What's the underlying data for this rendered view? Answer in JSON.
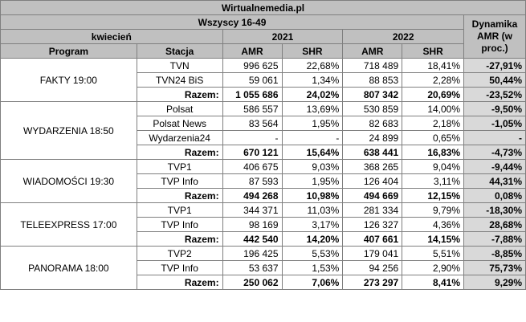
{
  "title": "Wirtualnemedia.pl",
  "group": "Wszyscy 16-49",
  "month": "kwiecień",
  "year_a": "2021",
  "year_b": "2022",
  "dynamics": "Dynamika AMR (w proc.)",
  "col_program": "Program",
  "col_station": "Stacja",
  "col_amr": "AMR",
  "col_shr": "SHR",
  "programs": [
    {
      "name": "FAKTY 19:00",
      "rows": [
        {
          "station": "TVN",
          "amr21": "996 625",
          "shr21": "22,68%",
          "amr22": "718 489",
          "shr22": "18,41%",
          "dyn": "-27,91%"
        },
        {
          "station": "TVN24 BiS",
          "amr21": "59 061",
          "shr21": "1,34%",
          "amr22": "88 853",
          "shr22": "2,28%",
          "dyn": "50,44%"
        },
        {
          "station": "Razem:",
          "amr21": "1 055 686",
          "shr21": "24,02%",
          "amr22": "807 342",
          "shr22": "20,69%",
          "dyn": "-23,52%"
        }
      ]
    },
    {
      "name": "WYDARZENIA 18:50",
      "rows": [
        {
          "station": "Polsat",
          "amr21": "586 557",
          "shr21": "13,69%",
          "amr22": "530 859",
          "shr22": "14,00%",
          "dyn": "-9,50%"
        },
        {
          "station": "Polsat News",
          "amr21": "83 564",
          "shr21": "1,95%",
          "amr22": "82 683",
          "shr22": "2,18%",
          "dyn": "-1,05%"
        },
        {
          "station": "Wydarzenia24",
          "amr21": "-",
          "shr21": "-",
          "amr22": "24 899",
          "shr22": "0,65%",
          "dyn": "-"
        },
        {
          "station": "Razem:",
          "amr21": "670 121",
          "shr21": "15,64%",
          "amr22": "638 441",
          "shr22": "16,83%",
          "dyn": "-4,73%"
        }
      ]
    },
    {
      "name": "WIADOMOŚCI 19:30",
      "rows": [
        {
          "station": "TVP1",
          "amr21": "406 675",
          "shr21": "9,03%",
          "amr22": "368 265",
          "shr22": "9,04%",
          "dyn": "-9,44%"
        },
        {
          "station": "TVP Info",
          "amr21": "87 593",
          "shr21": "1,95%",
          "amr22": "126 404",
          "shr22": "3,11%",
          "dyn": "44,31%"
        },
        {
          "station": "Razem:",
          "amr21": "494 268",
          "shr21": "10,98%",
          "amr22": "494 669",
          "shr22": "12,15%",
          "dyn": "0,08%"
        }
      ]
    },
    {
      "name": "TELEEXPRESS 17:00",
      "rows": [
        {
          "station": "TVP1",
          "amr21": "344 371",
          "shr21": "11,03%",
          "amr22": "281 334",
          "shr22": "9,79%",
          "dyn": "-18,30%"
        },
        {
          "station": "TVP Info",
          "amr21": "98 169",
          "shr21": "3,17%",
          "amr22": "126 327",
          "shr22": "4,36%",
          "dyn": "28,68%"
        },
        {
          "station": "Razem:",
          "amr21": "442 540",
          "shr21": "14,20%",
          "amr22": "407 661",
          "shr22": "14,15%",
          "dyn": "-7,88%"
        }
      ]
    },
    {
      "name": "PANORAMA 18:00",
      "rows": [
        {
          "station": "TVP2",
          "amr21": "196 425",
          "shr21": "5,53%",
          "amr22": "179 041",
          "shr22": "5,51%",
          "dyn": "-8,85%"
        },
        {
          "station": "TVP Info",
          "amr21": "53 637",
          "shr21": "1,53%",
          "amr22": "94 256",
          "shr22": "2,90%",
          "dyn": "75,73%"
        },
        {
          "station": "Razem:",
          "amr21": "250 062",
          "shr21": "7,06%",
          "amr22": "273 297",
          "shr22": "8,41%",
          "dyn": "9,29%"
        }
      ]
    }
  ],
  "colors": {
    "header_bg": "#c0c0c0",
    "dynamics_bg": "#d9d9d9",
    "border": "#7f7f7f"
  }
}
